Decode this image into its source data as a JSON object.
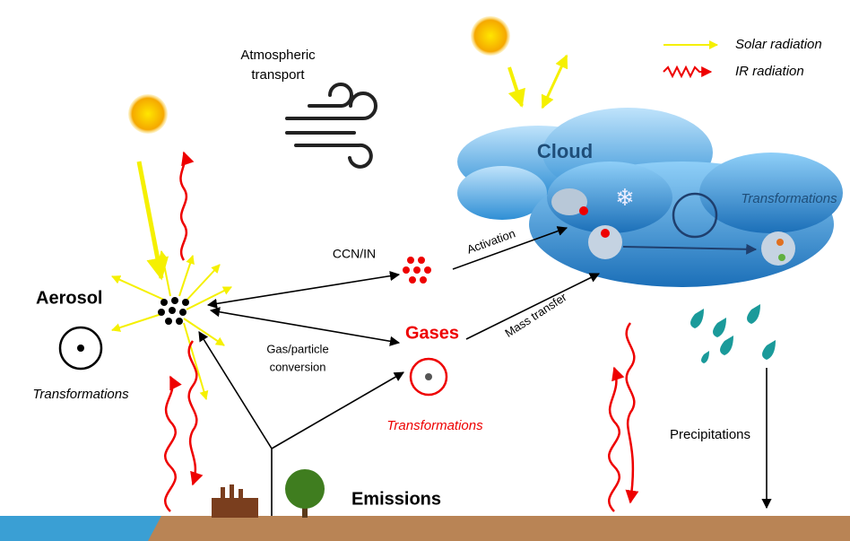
{
  "legend": {
    "solar": "Solar radiation",
    "ir": "IR radiation"
  },
  "atmospheric_transport": {
    "lines": [
      "Atmospheric",
      "transport"
    ]
  },
  "cloud": {
    "title": "Cloud",
    "transformations": "Transformations"
  },
  "aerosol": {
    "title": "Aerosol",
    "transformations": "Transformations"
  },
  "gases": {
    "title": "Gases",
    "transformations": "Transformations"
  },
  "processes": {
    "ccn": "CCN/IN",
    "activation": "Activation",
    "gas_particle": [
      "Gas/particle",
      "conversion"
    ],
    "mass_transfer": "Mass transfer",
    "precipitations": "Precipitations",
    "emissions": "Emissions"
  }
}
